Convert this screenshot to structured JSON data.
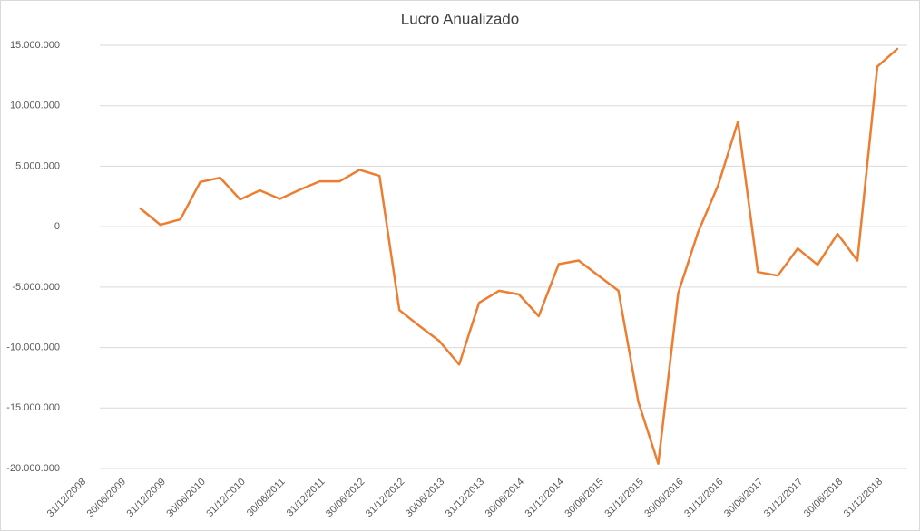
{
  "chart_data": {
    "type": "line",
    "title": "Lucro Anualizado",
    "categories": [
      "31/12/2008",
      null,
      "30/06/2009",
      null,
      "31/12/2009",
      null,
      "30/06/2010",
      null,
      "31/12/2010",
      null,
      "30/06/2011",
      null,
      "31/12/2011",
      null,
      "30/06/2012",
      null,
      "31/12/2012",
      null,
      "30/06/2013",
      null,
      "31/12/2013",
      null,
      "30/06/2014",
      null,
      "31/12/2014",
      null,
      "30/06/2015",
      null,
      "31/12/2015",
      null,
      "30/06/2016",
      null,
      "31/12/2016",
      null,
      "30/06/2017",
      null,
      "31/12/2017",
      null,
      "30/06/2018",
      null,
      "31/12/2018",
      null
    ],
    "values": [
      null,
      null,
      null,
      1500000,
      150000,
      600000,
      3700000,
      4050000,
      2250000,
      3000000,
      2300000,
      3050000,
      3750000,
      3750000,
      4700000,
      4200000,
      -6900000,
      -8200000,
      -9450000,
      -11400000,
      -6300000,
      -5300000,
      -5600000,
      -7400000,
      -3100000,
      -2800000,
      -4050000,
      -5300000,
      -14500000,
      -19600000,
      -5500000,
      -450000,
      3400000,
      8700000,
      -3750000,
      -4050000,
      -1800000,
      -3150000,
      -600000,
      -2800000,
      13250000,
      14700000
    ],
    "color": "#ed7d31",
    "ylim": [
      -20000000,
      15000000
    ],
    "yticks": [
      {
        "value": -20000000,
        "label": "-20.000.000"
      },
      {
        "value": -15000000,
        "label": "-15.000.000"
      },
      {
        "value": -10000000,
        "label": "-10.000.000"
      },
      {
        "value": -5000000,
        "label": "-5.000.000"
      },
      0,
      {
        "value": 5000000,
        "label": "5.000.000"
      },
      {
        "value": 10000000,
        "label": "10.000.000"
      },
      {
        "value": 15000000,
        "label": "15.000.000"
      }
    ],
    "grid": true
  }
}
